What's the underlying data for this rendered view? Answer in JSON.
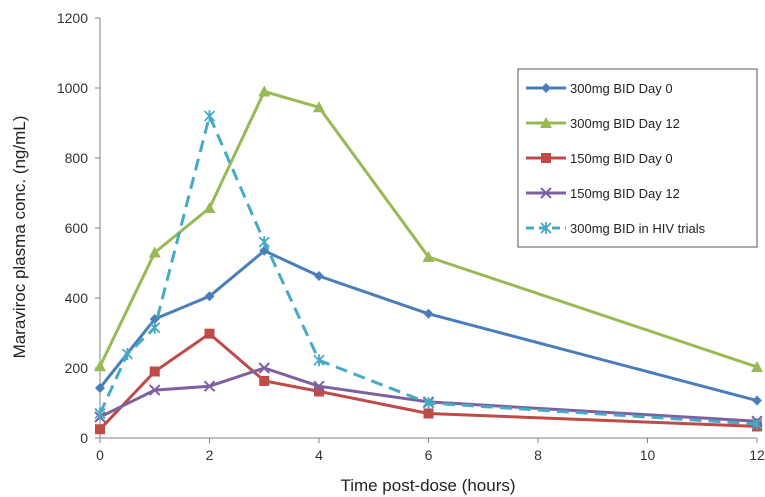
{
  "chart_data": {
    "type": "line",
    "title": "",
    "xlabel": "Time post-dose (hours)",
    "ylabel": "Maraviroc plasma conc. (ng/mL)",
    "xlim": [
      0,
      12
    ],
    "ylim": [
      0,
      1200
    ],
    "xticks": [
      0,
      2,
      4,
      6,
      8,
      10,
      12
    ],
    "yticks": [
      0,
      200,
      400,
      600,
      800,
      1000,
      1200
    ],
    "grid": false,
    "legend_position": "right",
    "series": [
      {
        "name": "300mg BID Day 0",
        "color": "#4a7ebb",
        "marker": "diamond",
        "dash": "solid",
        "x": [
          0,
          1,
          2,
          3,
          4,
          6,
          12
        ],
        "y": [
          143,
          340,
          405,
          535,
          463,
          355,
          107
        ]
      },
      {
        "name": "300mg BID Day 12",
        "color": "#98b954",
        "marker": "triangle",
        "dash": "solid",
        "x": [
          0,
          1,
          2,
          3,
          4,
          6,
          12
        ],
        "y": [
          205,
          530,
          657,
          990,
          945,
          517,
          203
        ]
      },
      {
        "name": "150mg BID Day 0",
        "color": "#be4b48",
        "marker": "square",
        "dash": "solid",
        "x": [
          0,
          1,
          2,
          3,
          4,
          6,
          12
        ],
        "y": [
          25,
          190,
          298,
          163,
          133,
          70,
          33
        ]
      },
      {
        "name": "150mg BID Day 12",
        "color": "#7d60a0",
        "marker": "x",
        "dash": "solid",
        "x": [
          0,
          1,
          2,
          3,
          4,
          6,
          12
        ],
        "y": [
          60,
          137,
          148,
          200,
          148,
          103,
          48
        ]
      },
      {
        "name": "300mg BID in HIV trials",
        "color": "#46aac5",
        "marker": "star",
        "dash": "dashed",
        "x": [
          0,
          0.5,
          1,
          2,
          3,
          4,
          6,
          12
        ],
        "y": [
          70,
          240,
          315,
          920,
          560,
          222,
          100,
          40
        ]
      }
    ]
  }
}
